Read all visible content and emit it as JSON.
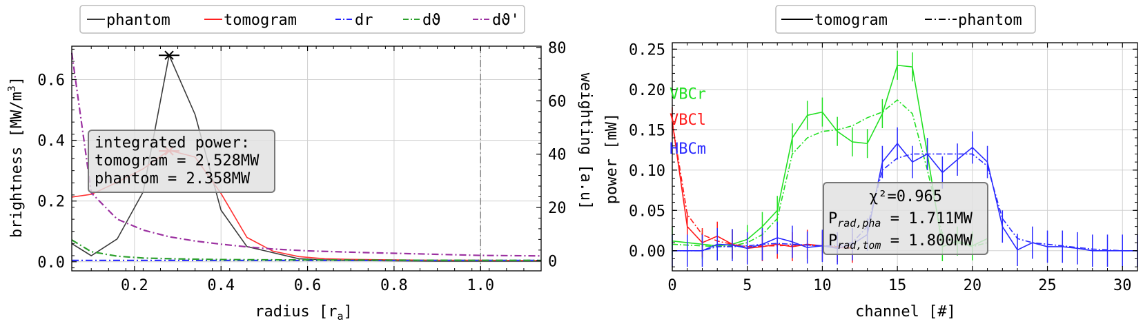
{
  "chart_data": [
    {
      "type": "line",
      "xlabel": "radius [r",
      "xlabel_sub": "a",
      "xlabel_end": "]",
      "ylabel": "brightness [MW/m",
      "ylabel_sup": "3",
      "ylabel_end": "]",
      "y2label": "weighting [a.u]",
      "xlim": [
        0.055,
        1.14
      ],
      "ylim": [
        -0.03,
        0.71
      ],
      "y2lim": [
        -3.8,
        80.5
      ],
      "xticks": [
        0.2,
        0.4,
        0.6,
        0.8,
        1.0
      ],
      "xtick_labels": [
        "0.2",
        "0.4",
        "0.6",
        "0.8",
        "1.0"
      ],
      "yticks": [
        0.0,
        0.2,
        0.4,
        0.6
      ],
      "ytick_labels": [
        "0.0",
        "0.2",
        "0.4",
        "0.6"
      ],
      "y2ticks": [
        0,
        20,
        40,
        60,
        80
      ],
      "y2tick_labels": [
        "0",
        "20",
        "40",
        "60",
        "80"
      ],
      "grid": true,
      "legend_position": "top (outside)",
      "vline_x": 1.0,
      "legend": [
        {
          "label": "phantom",
          "color": "#3a3a3a",
          "dash": "solid"
        },
        {
          "label": "tomogram",
          "color": "#ff2020",
          "dash": "solid"
        },
        {
          "label": "dr",
          "color": "#2020ff",
          "dash": "dashdot"
        },
        {
          "label": "dϑ",
          "color": "#2ca02c",
          "dash": "dashdot"
        },
        {
          "label": "dϑ'",
          "color": "#9b30a0",
          "dash": "dashdot"
        }
      ],
      "series": [
        {
          "name": "phantom",
          "axis": "left",
          "color": "#3a3a3a",
          "dash": "solid",
          "x": [
            0.055,
            0.1,
            0.16,
            0.22,
            0.28,
            0.34,
            0.4,
            0.46,
            0.52,
            0.58,
            0.64,
            0.7,
            0.8,
            0.9,
            1.0,
            1.14
          ],
          "y": [
            0.06,
            0.02,
            0.075,
            0.23,
            0.68,
            0.485,
            0.17,
            0.05,
            0.03,
            0.01,
            0.006,
            0.004,
            0.003,
            0.002,
            0.002,
            0.002
          ]
        },
        {
          "name": "tomogram",
          "axis": "left",
          "color": "#ff3030",
          "dash": "solid",
          "x": [
            0.055,
            0.1,
            0.16,
            0.22,
            0.28,
            0.34,
            0.4,
            0.46,
            0.52,
            0.58,
            0.64,
            0.7,
            0.8,
            0.9,
            1.0,
            1.14
          ],
          "y": [
            0.213,
            0.222,
            0.262,
            0.306,
            0.367,
            0.345,
            0.225,
            0.08,
            0.035,
            0.017,
            0.01,
            0.008,
            0.006,
            0.005,
            0.005,
            0.004
          ]
        },
        {
          "name": "dr",
          "axis": "right",
          "color": "#3030ff",
          "dash": "dashdot",
          "x": [
            0.055,
            1.14
          ],
          "y": [
            0.1,
            0.1
          ]
        },
        {
          "name": "dϑ",
          "axis": "right",
          "color": "#2ca02c",
          "dash": "dashdot",
          "x": [
            0.055,
            0.1,
            0.16,
            0.22,
            0.3,
            0.4,
            0.5,
            0.6,
            0.8,
            1.0,
            1.14
          ],
          "y": [
            7.8,
            3.4,
            1.7,
            1.0,
            0.7,
            0.45,
            0.35,
            0.3,
            0.2,
            0.15,
            0.12
          ]
        },
        {
          "name": "dϑ'",
          "axis": "right",
          "color": "#9b30a0",
          "dash": "dashdot",
          "x": [
            0.055,
            0.1,
            0.16,
            0.22,
            0.28,
            0.34,
            0.4,
            0.46,
            0.52,
            0.6,
            0.7,
            0.8,
            0.9,
            1.0,
            1.14
          ],
          "y": [
            78,
            25.5,
            15.6,
            11.5,
            9.0,
            7.4,
            6.2,
            5.2,
            4.4,
            3.7,
            3.2,
            2.8,
            2.4,
            2.0,
            1.8
          ]
        }
      ],
      "markers": [
        {
          "x": 0.28,
          "y": 0.68,
          "color": "#000000",
          "shape": "x"
        },
        {
          "x": 0.28,
          "y": 0.365,
          "color": "#ff3030",
          "shape": "x"
        }
      ],
      "annotation": {
        "lines": [
          "integrated power:",
          "tomogram = 2.528MW",
          "phantom = 2.358MW"
        ]
      }
    },
    {
      "type": "line",
      "xlabel": "channel [#]",
      "ylabel": "power [mW]",
      "xlim": [
        0,
        31
      ],
      "ylim": [
        -0.025,
        0.258
      ],
      "xticks": [
        0,
        5,
        10,
        15,
        20,
        25,
        30
      ],
      "xtick_labels": [
        "0",
        "5",
        "10",
        "15",
        "20",
        "25",
        "30"
      ],
      "yticks": [
        0.0,
        0.05,
        0.1,
        0.15,
        0.2,
        0.25
      ],
      "ytick_labels": [
        "0.00",
        "0.05",
        "0.10",
        "0.15",
        "0.20",
        "0.25"
      ],
      "grid": true,
      "legend_position": "top (outside)",
      "legend": [
        {
          "label": "tomogram",
          "dash": "solid"
        },
        {
          "label": "phantom",
          "dash": "dashdot"
        }
      ],
      "groups": [
        {
          "name": "VBCr",
          "color": "#22e022",
          "label_y": 0.195,
          "x": [
            0,
            1,
            2,
            3,
            4,
            5,
            6,
            7,
            8,
            9,
            10,
            11,
            12,
            13,
            14,
            15,
            16,
            17,
            18,
            19,
            20,
            21
          ],
          "tomogram": [
            0.012,
            0.01,
            0.008,
            0.006,
            0.008,
            0.014,
            0.03,
            0.05,
            0.14,
            0.168,
            0.172,
            0.148,
            0.135,
            0.133,
            0.17,
            0.23,
            0.228,
            0.12,
            0.005,
            0.012,
            0.006,
            0.015
          ],
          "phantom": [
            0.008,
            0.007,
            0.006,
            0.005,
            0.006,
            0.01,
            0.02,
            0.04,
            0.12,
            0.14,
            0.148,
            0.15,
            0.155,
            0.165,
            0.172,
            0.187,
            0.17,
            0.1,
            0.02,
            0.01,
            0.005,
            0.01
          ],
          "yerr": 0.018
        },
        {
          "name": "VBCl",
          "color": "#ff1a1a",
          "label_y": 0.163,
          "x": [
            0,
            1,
            2,
            3,
            4,
            5,
            6,
            7,
            8,
            9,
            10,
            11,
            12
          ],
          "tomogram": [
            0.16,
            0.03,
            0.01,
            0.018,
            0.008,
            0.003,
            0.005,
            0.008,
            0.005,
            0.008,
            0.006,
            0.004,
            0.003
          ],
          "phantom": [
            0.16,
            0.045,
            0.02,
            0.012,
            0.008,
            0.005,
            0.006,
            0.006,
            0.007,
            0.007,
            0.006,
            0.005,
            0.004
          ],
          "yerr": 0.018
        },
        {
          "name": "HBCm",
          "color": "#2a2aff",
          "label_y": 0.127,
          "x": [
            0,
            1,
            2,
            3,
            4,
            5,
            6,
            7,
            8,
            9,
            10,
            11,
            12,
            13,
            14,
            15,
            16,
            17,
            18,
            19,
            20,
            21,
            22,
            23,
            24,
            25,
            26,
            27,
            28,
            29,
            30,
            31
          ],
          "tomogram": [
            0.0,
            0.0,
            0.0,
            0.008,
            0.007,
            0.003,
            0.008,
            0.016,
            0.011,
            0.004,
            0.006,
            0.003,
            0.008,
            0.02,
            0.11,
            0.133,
            0.11,
            0.12,
            0.097,
            0.113,
            0.128,
            0.11,
            0.03,
            0.001,
            0.01,
            0.005,
            0.005,
            0.003,
            0.0,
            0.0,
            0.0,
            0.0
          ],
          "phantom": [
            0.0,
            0.0,
            0.0,
            0.005,
            0.005,
            0.006,
            0.008,
            0.009,
            0.008,
            0.007,
            0.006,
            0.006,
            0.01,
            0.03,
            0.1,
            0.115,
            0.12,
            0.12,
            0.12,
            0.12,
            0.12,
            0.105,
            0.04,
            0.015,
            0.01,
            0.008,
            0.006,
            0.004,
            0.002,
            0.001,
            0.0,
            0.0
          ],
          "yerr": 0.02
        }
      ],
      "annotation": {
        "chi": "χ²=0.965",
        "line1_main": "P",
        "line1_sub": "rad,pha",
        "line1_rest": " = 1.711MW",
        "line2_main": "P",
        "line2_sub": "rad,tom",
        "line2_rest": " = 1.800MW"
      }
    }
  ]
}
